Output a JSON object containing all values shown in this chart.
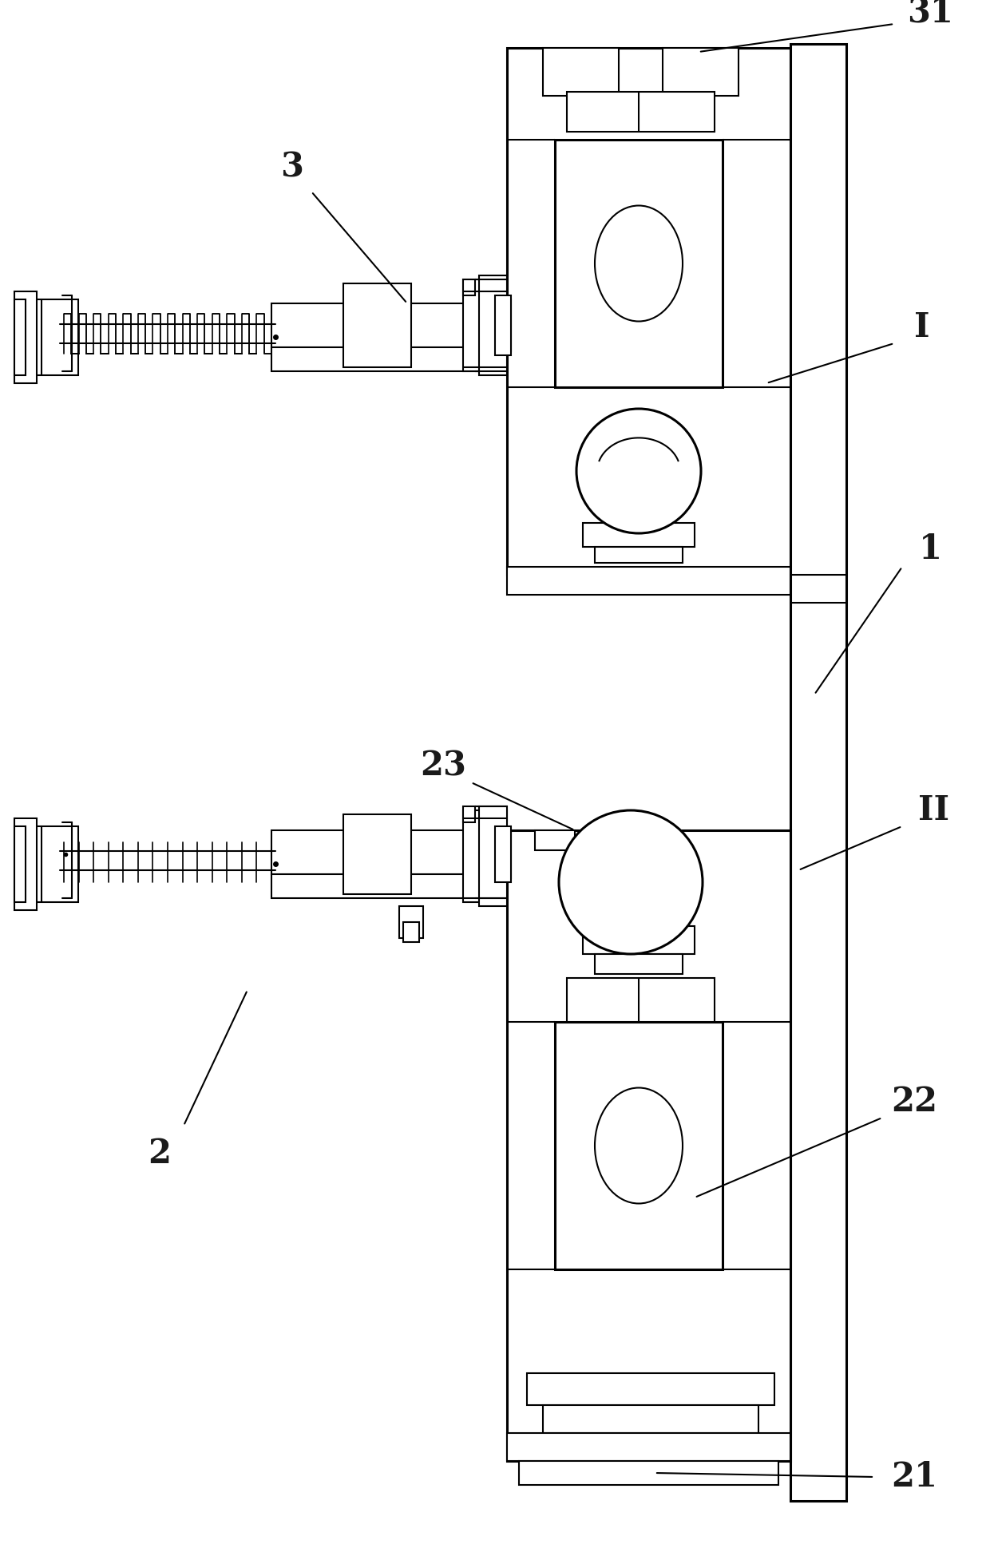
{
  "bg_color": "#ffffff",
  "lc": "#000000",
  "lw": 1.5,
  "tlw": 2.2,
  "fig_width": 12.4,
  "fig_height": 19.34,
  "dpi": 100
}
